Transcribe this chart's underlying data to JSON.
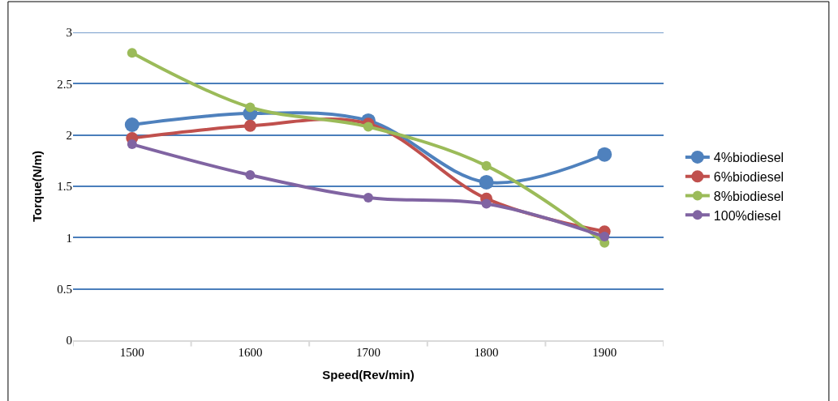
{
  "chart_data": {
    "type": "line",
    "xlabel": "Speed(Rev/min)",
    "ylabel": "Torque(N/m)",
    "categories": [
      "1500",
      "1600",
      "1700",
      "1800",
      "1900"
    ],
    "series": [
      {
        "name": "4%biodiesel",
        "color": "#4f81bd",
        "values": [
          2.1,
          2.21,
          2.14,
          1.54,
          1.81
        ]
      },
      {
        "name": "6%biodiesel",
        "color": "#c0504d",
        "values": [
          1.97,
          2.09,
          2.11,
          1.38,
          1.06
        ]
      },
      {
        "name": "8%biodiesel",
        "color": "#9bbb59",
        "values": [
          2.8,
          2.27,
          2.08,
          1.7,
          0.95
        ]
      },
      {
        "name": "100%diesel",
        "color": "#8064a2",
        "values": [
          1.91,
          1.61,
          1.39,
          1.33,
          1.01
        ]
      }
    ],
    "ylim": [
      0,
      3
    ],
    "yticks": [
      0,
      0.5,
      1,
      1.5,
      2,
      2.5,
      3
    ],
    "grid": "y",
    "legend": "right",
    "marker": "circle",
    "line_style": "solid"
  }
}
